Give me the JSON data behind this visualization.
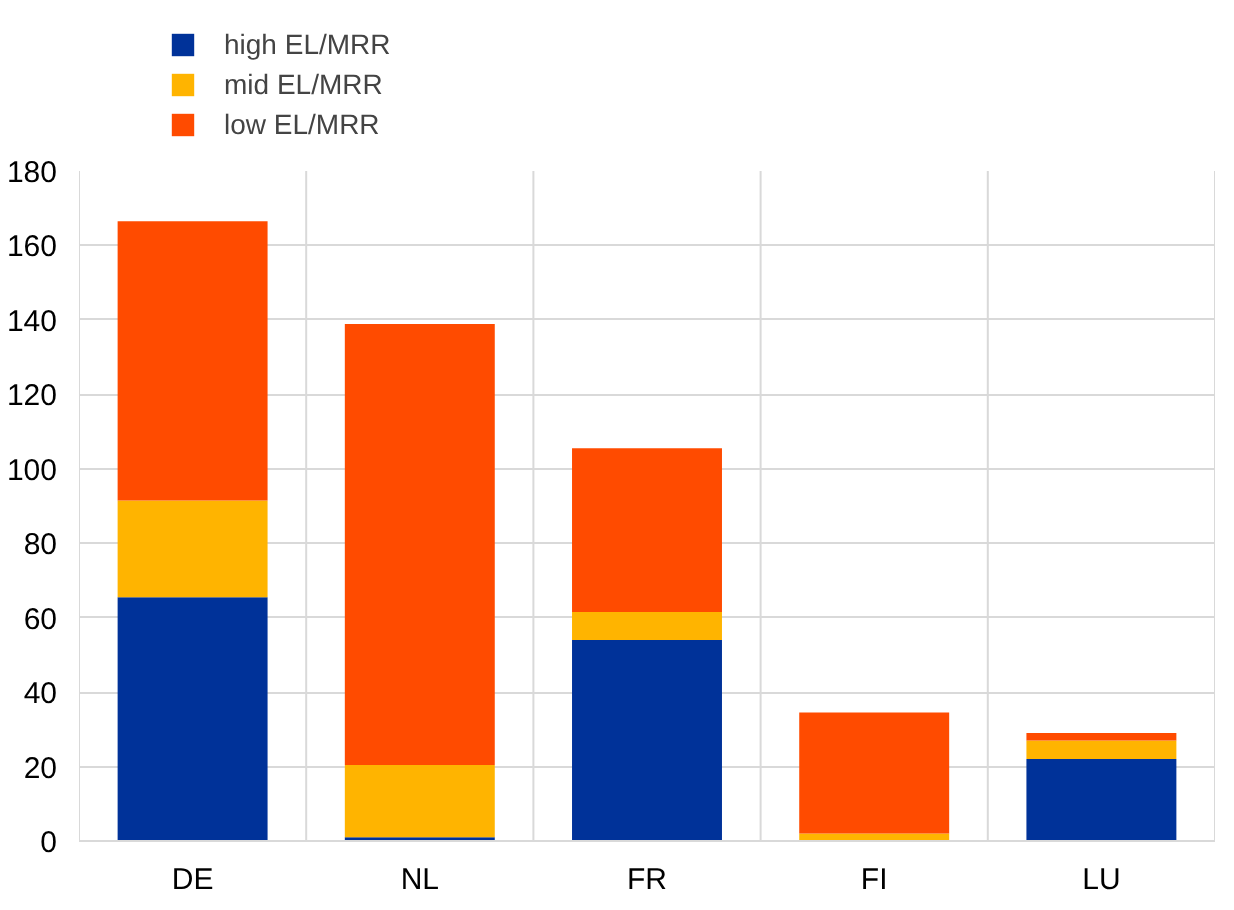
{
  "chart_data": {
    "type": "bar",
    "stacked": true,
    "categories": [
      "DE",
      "NL",
      "FR",
      "FI",
      "LU"
    ],
    "series": [
      {
        "name": "high EL/MRR",
        "color": "#003299",
        "values": [
          65.5,
          1,
          54,
          0,
          22
        ]
      },
      {
        "name": "mid EL/MRR",
        "color": "#ffb400",
        "values": [
          26,
          19.4,
          7.5,
          2,
          5
        ]
      },
      {
        "name": "low EL/MRR",
        "color": "#ff4b00",
        "values": [
          75,
          118.5,
          44,
          32.5,
          2
        ]
      }
    ],
    "ylim": [
      0,
      180
    ],
    "yticks": [
      0,
      20,
      40,
      60,
      80,
      100,
      120,
      140,
      160,
      180
    ],
    "grid": true,
    "legend": "top left"
  }
}
